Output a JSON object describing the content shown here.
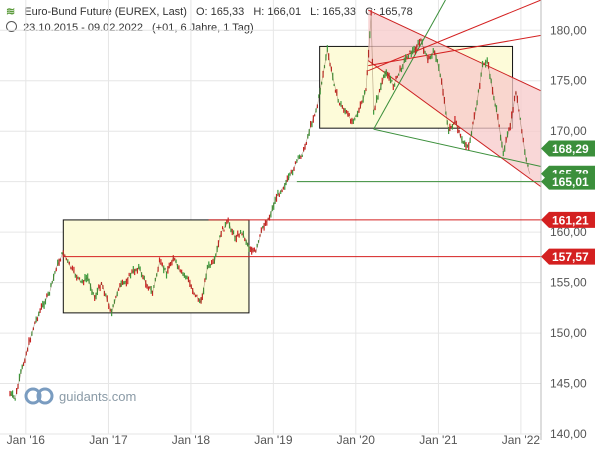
{
  "header": {
    "title": "Euro-Bund Future (EUREX, Last)",
    "open": "O: 165,33",
    "high": "H: 166,01",
    "low": "L: 165,33",
    "close": "C: 165,78",
    "range": "23.10.2015 - 09.02.2022",
    "change": "(+01, 6 Jahre, 1 Tag)"
  },
  "logo": {
    "text": "guidants.com"
  },
  "colors": {
    "up": "#3c9a3c",
    "down": "#cc2222",
    "channel_fill": "#f7c9c9",
    "box_fill": "#fdfbd9",
    "green_label": "#3b8f3b",
    "red_label": "#d42020",
    "grid": "#e6e6e6"
  },
  "chart_data": {
    "type": "line",
    "title": "Euro-Bund Future (EUREX, Last)",
    "x_range": [
      "2015-10-23",
      "2022-02-09"
    ],
    "ylim": [
      140,
      183
    ],
    "y_ticks": [
      140,
      145,
      150,
      155,
      160,
      165,
      170,
      175,
      180
    ],
    "y_tick_labels": [
      "140,00",
      "145,00",
      "150,00",
      "155,00",
      "160,00",
      "165,00",
      "170,00",
      "175,00",
      "180,00"
    ],
    "x_ticks": [
      "2016-01-01",
      "2017-01-01",
      "2018-01-01",
      "2019-01-01",
      "2020-01-01",
      "2021-01-01",
      "2022-01-01"
    ],
    "x_tick_labels": [
      "Jan '16",
      "Jan '17",
      "Jan '18",
      "Jan '19",
      "Jan '20",
      "Jan '21",
      "Jan '22"
    ],
    "grid": true,
    "series": [
      {
        "x": [
          "2015-10-23",
          "2015-11-15",
          "2015-12-10",
          "2016-01-15",
          "2016-02-10",
          "2016-03-10",
          "2016-04-15",
          "2016-05-15",
          "2016-06-15",
          "2016-07-05",
          "2016-08-01",
          "2016-09-01",
          "2016-10-01",
          "2016-11-01",
          "2016-12-01",
          "2017-01-15",
          "2017-02-15",
          "2017-03-15",
          "2017-04-15",
          "2017-05-15",
          "2017-06-15",
          "2017-07-15",
          "2017-08-15",
          "2017-09-15",
          "2017-10-15",
          "2017-11-15",
          "2017-12-15",
          "2018-01-15",
          "2018-02-15",
          "2018-03-15",
          "2018-04-15",
          "2018-05-15",
          "2018-06-15",
          "2018-07-15",
          "2018-08-15",
          "2018-09-15",
          "2018-10-15",
          "2018-11-15",
          "2018-12-15",
          "2019-01-15",
          "2019-02-15",
          "2019-03-15",
          "2019-04-15",
          "2019-05-15",
          "2019-06-15",
          "2019-07-15",
          "2019-08-28",
          "2019-09-15",
          "2019-10-15",
          "2019-11-15",
          "2019-12-15",
          "2020-01-15",
          "2020-02-15",
          "2020-03-09",
          "2020-03-20",
          "2020-04-15",
          "2020-05-15",
          "2020-06-15",
          "2020-07-15",
          "2020-08-15",
          "2020-09-15",
          "2020-10-15",
          "2020-11-15",
          "2020-12-15",
          "2021-01-15",
          "2021-02-15",
          "2021-03-15",
          "2021-04-15",
          "2021-05-15",
          "2021-06-15",
          "2021-07-15",
          "2021-08-05",
          "2021-09-15",
          "2021-10-15",
          "2021-11-15",
          "2021-12-10",
          "2022-01-05",
          "2022-01-25",
          "2022-02-09"
        ],
        "values": [
          144.0,
          143.5,
          146.0,
          149.0,
          151.0,
          152.5,
          154.0,
          156.5,
          158.0,
          157.0,
          156.0,
          155.0,
          155.5,
          153.5,
          155.0,
          152.0,
          154.5,
          155.0,
          156.0,
          156.5,
          155.0,
          154.0,
          157.0,
          156.0,
          157.5,
          156.0,
          155.5,
          154.0,
          153.0,
          156.5,
          157.0,
          160.0,
          161.0,
          159.5,
          160.0,
          158.5,
          158.0,
          160.5,
          161.5,
          163.5,
          164.5,
          165.5,
          167.0,
          168.0,
          170.5,
          172.5,
          178.0,
          176.0,
          173.0,
          172.0,
          171.0,
          172.0,
          174.0,
          181.5,
          172.0,
          174.0,
          176.0,
          174.5,
          176.0,
          177.5,
          178.0,
          179.0,
          177.0,
          178.0,
          175.0,
          170.0,
          171.0,
          169.0,
          168.5,
          172.0,
          176.5,
          177.0,
          172.0,
          168.0,
          170.5,
          174.0,
          170.0,
          167.0,
          165.78
        ]
      }
    ],
    "annotations": [
      {
        "type": "price_label",
        "value": 168.29,
        "text": "168,29",
        "color": "green"
      },
      {
        "type": "price_label",
        "value": 165.78,
        "text": "165,78",
        "color": "green"
      },
      {
        "type": "price_label",
        "value": 165.01,
        "text": "165,01",
        "color": "green"
      },
      {
        "type": "price_label",
        "value": 161.21,
        "text": "161,21",
        "color": "red"
      },
      {
        "type": "price_label",
        "value": 157.57,
        "text": "157,57",
        "color": "red"
      },
      {
        "type": "box",
        "x0": "2016-06-15",
        "x1": "2018-09-15",
        "y0": 152.0,
        "y1": 161.21
      },
      {
        "type": "box",
        "x0": "2019-07-25",
        "x1": "2021-11-25",
        "y0": 170.3,
        "y1": 178.4
      },
      {
        "type": "hline",
        "value": 161.21,
        "from": "2018-03-20",
        "color": "red"
      },
      {
        "type": "hline",
        "value": 157.57,
        "from": "2016-06-15",
        "color": "red"
      },
      {
        "type": "hline",
        "value": 165.01,
        "from": "2019-04-15",
        "color": "green"
      },
      {
        "type": "channel",
        "upper": [
          [
            "2020-02-25",
            182.0
          ],
          [
            "2022-03-31",
            174.0
          ]
        ],
        "lower": [
          [
            "2020-02-25",
            177.0
          ],
          [
            "2022-03-31",
            164.5
          ]
        ]
      },
      {
        "type": "fan_origin",
        "x": "2020-03-20",
        "y": 170.2
      },
      {
        "type": "fan_line",
        "to": [
          "2021-02-01",
          183.0
        ],
        "color": "green"
      },
      {
        "type": "fan_line",
        "to": [
          "2022-03-31",
          166.5
        ],
        "color": "green"
      },
      {
        "type": "fan_line",
        "from": [
          "2020-02-25",
          176.5
        ],
        "to": [
          "2022-03-31",
          179.5
        ],
        "color": "red"
      },
      {
        "type": "fan_line",
        "from": [
          "2020-02-25",
          176.0
        ],
        "to": [
          "2022-03-31",
          183.0
        ],
        "color": "red"
      }
    ]
  }
}
